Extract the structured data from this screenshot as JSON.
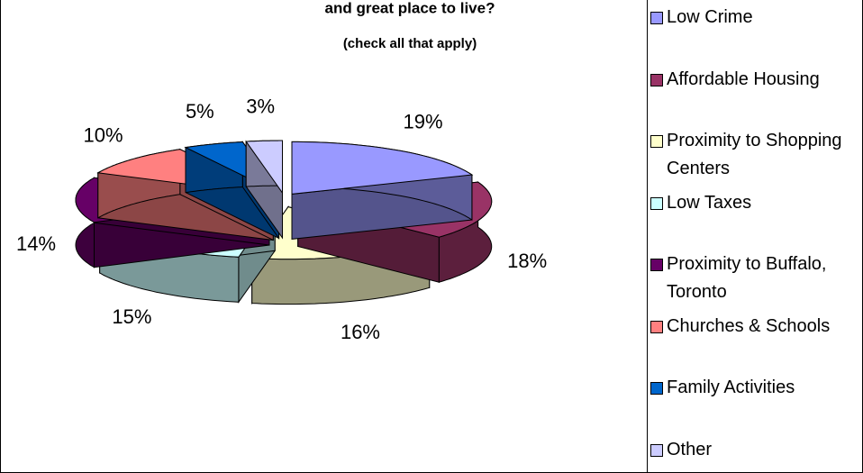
{
  "chart_data": {
    "type": "pie3d",
    "title": "and great place to live?",
    "subtitle": "(check all that apply)",
    "categories": [
      "Low Crime",
      "Affordable Housing",
      "Proximity to Shopping Centers",
      "Low Taxes",
      "Proximity to Buffalo, Toronto",
      "Churches & Schools",
      "Family Activities",
      "Other"
    ],
    "values": [
      19,
      18,
      16,
      15,
      14,
      10,
      5,
      3
    ],
    "value_labels": [
      "19%",
      "18%",
      "16%",
      "15%",
      "14%",
      "10%",
      "5%",
      "3%"
    ],
    "colors": [
      "#9999ff",
      "#993366",
      "#ffffcc",
      "#ccffff",
      "#660066",
      "#ff8080",
      "#0066cc",
      "#ccccff"
    ],
    "legend": "right"
  }
}
